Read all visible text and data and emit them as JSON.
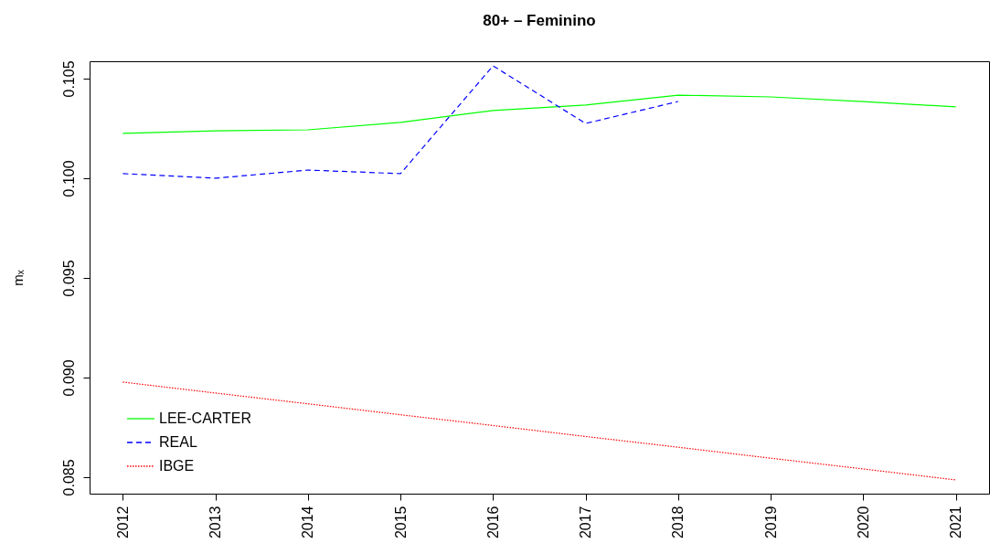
{
  "chart_data": {
    "type": "line",
    "title": "80+ – Feminino",
    "ylabel": "mₓ",
    "x": [
      2012,
      2013,
      2014,
      2015,
      2016,
      2017,
      2018,
      2019,
      2020,
      2021
    ],
    "xlim": [
      2011.64,
      2021.36
    ],
    "xticks": [
      2012,
      2013,
      2014,
      2015,
      2016,
      2017,
      2018,
      2019,
      2020,
      2021
    ],
    "ylim": [
      0.08417,
      0.10587
    ],
    "yticks": [
      0.085,
      {
        "value": 0.09,
        "label": "0.090"
      },
      0.095,
      {
        "value": 0.1,
        "label": "0.100"
      },
      0.105
    ],
    "series": [
      {
        "name": "LEE-CARTER",
        "color": "#00ff00",
        "line_style": "solid",
        "values": [
          0.10225,
          0.10238,
          0.10243,
          0.1028,
          0.1034,
          0.10367,
          0.10417,
          0.10408,
          0.10385,
          0.10358
        ]
      },
      {
        "name": "REAL",
        "color": "#0000ff",
        "line_style": "dashed",
        "values": [
          0.10023,
          0.1,
          0.10041,
          0.10023,
          0.10564,
          0.10275,
          0.10385,
          null,
          null,
          null
        ]
      },
      {
        "name": "IBGE",
        "color": "#ff0000",
        "line_style": "dotted",
        "values": [
          0.08977,
          0.08922,
          0.08868,
          0.08813,
          0.08759,
          0.08704,
          0.0865,
          0.08595,
          0.08541,
          0.08486
        ]
      }
    ],
    "grid": false,
    "legend": "bottom left"
  }
}
